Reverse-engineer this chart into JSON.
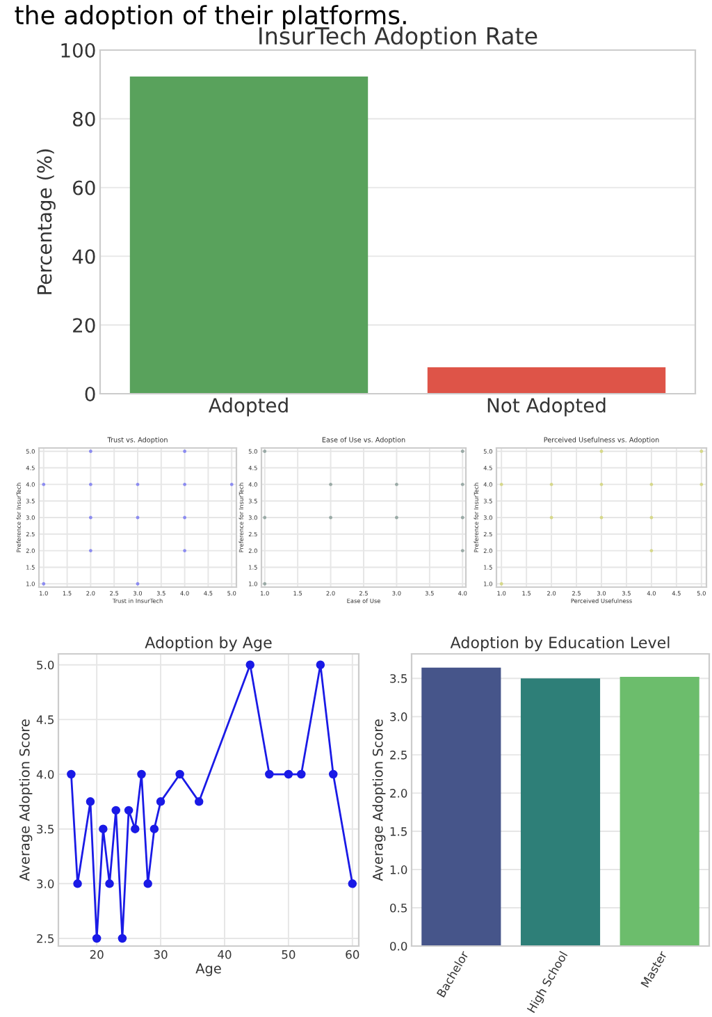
{
  "chart_data": [
    {
      "type": "bar",
      "title": "InsurTech Adoption Rate",
      "ylabel": "Percentage (%)",
      "categories": [
        "Adopted",
        "Not Adopted"
      ],
      "values": [
        92.3,
        7.7
      ],
      "colors": [
        "#59a25c",
        "#de5448"
      ],
      "ylim": [
        0,
        100
      ],
      "yticks": [
        0,
        20,
        40,
        60,
        80,
        100
      ],
      "grid": "y",
      "annotations": [
        "the adoption of their platforms."
      ]
    },
    {
      "type": "scatter",
      "title": "Trust vs. Adoption",
      "xlabel": "Trust in InsurTech",
      "ylabel": "Preference for InsurTech",
      "xlim": [
        0.9,
        5.1
      ],
      "ylim": [
        0.9,
        5.1
      ],
      "xticks": [
        {
          "value": 1,
          "label": "1.0"
        },
        1.5,
        {
          "value": 2,
          "label": "2.0"
        },
        2.5,
        {
          "value": 3,
          "label": "3.0"
        },
        3.5,
        {
          "value": 4,
          "label": "4.0"
        },
        4.5,
        {
          "value": 5,
          "label": "5.0"
        }
      ],
      "yticks": [
        {
          "value": 1,
          "label": "1.0"
        },
        1.5,
        {
          "value": 2,
          "label": "2.0"
        },
        2.5,
        {
          "value": 3,
          "label": "3.0"
        },
        3.5,
        {
          "value": 4,
          "label": "4.0"
        },
        4.5,
        {
          "value": 5,
          "label": "5.0"
        }
      ],
      "grid": true,
      "marker": "circle",
      "series": [
        {
          "color": "#8c8cf0",
          "x": [
            1,
            1,
            2,
            2,
            2,
            2,
            3,
            3,
            3,
            4,
            4,
            4,
            4,
            5
          ],
          "values": [
            4,
            1,
            5,
            4,
            3,
            2,
            4,
            3,
            1,
            5,
            4,
            3,
            2,
            4
          ]
        }
      ]
    },
    {
      "type": "scatter",
      "title": "Ease of Use vs. Adoption",
      "xlabel": "Ease of Use",
      "ylabel": "Preference for InsurTech",
      "xlim": [
        0.95,
        4.05
      ],
      "ylim": [
        0.9,
        5.1
      ],
      "xticks": [
        {
          "value": 1,
          "label": "1.0"
        },
        1.5,
        {
          "value": 2,
          "label": "2.0"
        },
        2.5,
        {
          "value": 3,
          "label": "3.0"
        },
        3.5,
        {
          "value": 4,
          "label": "4.0"
        }
      ],
      "yticks": [
        {
          "value": 1,
          "label": "1.0"
        },
        1.5,
        {
          "value": 2,
          "label": "2.0"
        },
        2.5,
        {
          "value": 3,
          "label": "3.0"
        },
        3.5,
        {
          "value": 4,
          "label": "4.0"
        },
        4.5,
        {
          "value": 5,
          "label": "5.0"
        }
      ],
      "grid": true,
      "marker": "circle",
      "series": [
        {
          "color": "#9aaaa6",
          "x": [
            1,
            1,
            1,
            2,
            2,
            3,
            3,
            4,
            4,
            4,
            4
          ],
          "values": [
            5,
            3,
            1,
            4,
            3,
            4,
            3,
            5,
            4,
            3,
            2
          ]
        }
      ]
    },
    {
      "type": "scatter",
      "title": "Perceived Usefulness vs. Adoption",
      "xlabel": "Perceived Usefulness",
      "ylabel": "Preference for InsurTech",
      "xlim": [
        0.9,
        5.1
      ],
      "ylim": [
        0.9,
        5.1
      ],
      "xticks": [
        {
          "value": 1,
          "label": "1.0"
        },
        1.5,
        {
          "value": 2,
          "label": "2.0"
        },
        2.5,
        {
          "value": 3,
          "label": "3.0"
        },
        3.5,
        {
          "value": 4,
          "label": "4.0"
        },
        4.5,
        {
          "value": 5,
          "label": "5.0"
        }
      ],
      "yticks": [
        {
          "value": 1,
          "label": "1.0"
        },
        1.5,
        {
          "value": 2,
          "label": "2.0"
        },
        2.5,
        {
          "value": 3,
          "label": "3.0"
        },
        3.5,
        {
          "value": 4,
          "label": "4.0"
        },
        4.5,
        {
          "value": 5,
          "label": "5.0"
        }
      ],
      "grid": true,
      "marker": "circle",
      "series": [
        {
          "color": "#d6d88a",
          "x": [
            1,
            1,
            2,
            2,
            3,
            3,
            3,
            4,
            4,
            4,
            5,
            5
          ],
          "values": [
            4,
            1,
            4,
            3,
            5,
            4,
            3,
            4,
            3,
            2,
            5,
            4
          ]
        }
      ]
    },
    {
      "type": "line",
      "title": "Adoption by Age",
      "xlabel": "Age",
      "ylabel": "Average Adoption Score",
      "xlim": [
        14,
        61
      ],
      "ylim": [
        2.43,
        5.1
      ],
      "xticks": [
        20,
        30,
        40,
        50,
        60
      ],
      "yticks": [
        2.5,
        {
          "value": 3,
          "label": "3.0"
        },
        3.5,
        {
          "value": 4,
          "label": "4.0"
        },
        4.5,
        {
          "value": 5,
          "label": "5.0"
        }
      ],
      "grid": true,
      "marker": "circle",
      "series": [
        {
          "color": "#1a1ae6",
          "x": [
            16,
            17,
            19,
            20,
            21,
            22,
            23,
            24,
            25,
            26,
            27,
            28,
            29,
            30,
            33,
            36,
            44,
            47,
            50,
            52,
            55,
            57,
            60
          ],
          "values": [
            4.0,
            3.0,
            3.75,
            2.5,
            3.5,
            3.0,
            3.67,
            2.5,
            3.67,
            3.5,
            4.0,
            3.0,
            3.5,
            3.75,
            4.0,
            3.75,
            5.0,
            4.0,
            4.0,
            4.0,
            5.0,
            4.0,
            3.0
          ]
        }
      ]
    },
    {
      "type": "bar",
      "title": "Adoption by Education Level",
      "ylabel": "Average Adoption Score",
      "categories": [
        "Bachelor",
        "High School",
        "Master"
      ],
      "values": [
        3.64,
        3.5,
        3.52
      ],
      "colors": [
        "#46558a",
        "#2e7f78",
        "#6cbd6c"
      ],
      "ylim": [
        0,
        3.82
      ],
      "yticks": [
        {
          "value": 0,
          "label": "0.0"
        },
        0.5,
        {
          "value": 1,
          "label": "1.0"
        },
        1.5,
        {
          "value": 2,
          "label": "2.0"
        },
        2.5,
        {
          "value": 3,
          "label": "3.0"
        },
        3.5
      ],
      "grid": "y"
    }
  ]
}
